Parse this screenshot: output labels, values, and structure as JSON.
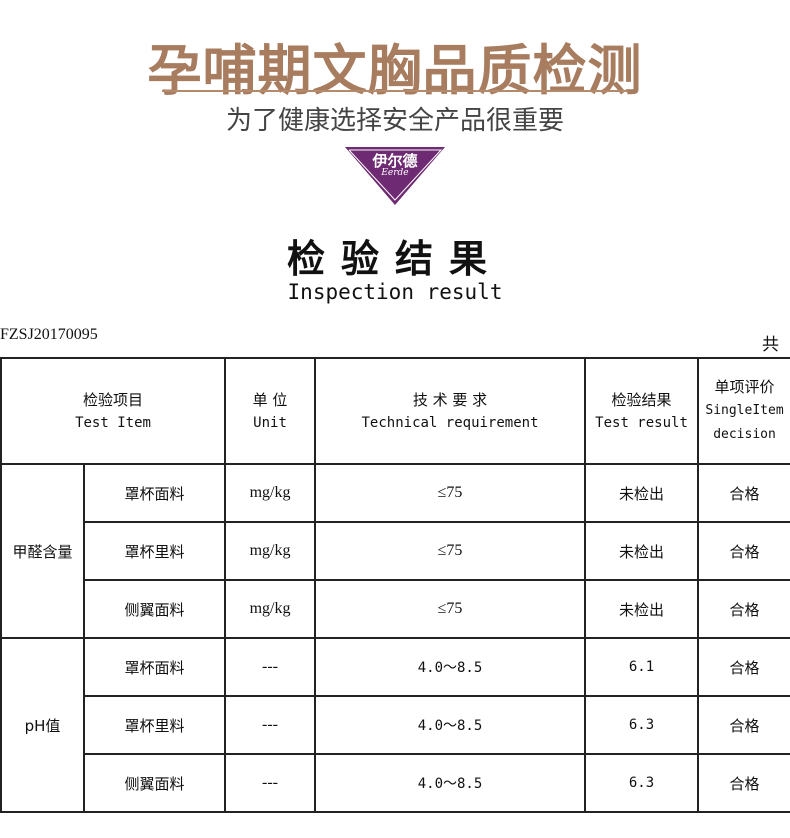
{
  "header": {
    "title": "孕哺期文胸品质检测",
    "subtitle": "为了健康选择安全产品很重要",
    "brand_cn": "伊尔德",
    "brand_en": "Eerde",
    "brand_color": "#6e2a72",
    "title_color": "#a87c5e"
  },
  "report": {
    "heading_cn": "检验结果",
    "heading_en": "Inspection result",
    "number": "FZSJ20170095",
    "page_total_prefix": "共"
  },
  "table": {
    "columns": [
      {
        "cn": "检验项目",
        "en": "Test Item"
      },
      {
        "cn": "单 位",
        "en": "Unit"
      },
      {
        "cn": "技 术 要 求",
        "en": "Technical requirement"
      },
      {
        "cn": "检验结果",
        "en": "Test result"
      },
      {
        "cn": "单项评价",
        "en": "SingleItem",
        "en2": "decision"
      }
    ],
    "groups": [
      {
        "name": "甲醛含量",
        "rows": [
          {
            "item": "罩杯面料",
            "unit": "mg/kg",
            "req": "≤75",
            "result": "未检出",
            "decision": "合格"
          },
          {
            "item": "罩杯里料",
            "unit": "mg/kg",
            "req": "≤75",
            "result": "未检出",
            "decision": "合格"
          },
          {
            "item": "侧翼面料",
            "unit": "mg/kg",
            "req": "≤75",
            "result": "未检出",
            "decision": "合格"
          }
        ]
      },
      {
        "name": "pH值",
        "rows": [
          {
            "item": "罩杯面料",
            "unit": "---",
            "req": "4.0～8.5",
            "result": "6.1",
            "decision": "合格"
          },
          {
            "item": "罩杯里料",
            "unit": "---",
            "req": "4.0～8.5",
            "result": "6.3",
            "decision": "合格"
          },
          {
            "item": "侧翼面料",
            "unit": "---",
            "req": "4.0～8.5",
            "result": "6.3",
            "decision": "合格"
          }
        ]
      }
    ]
  }
}
